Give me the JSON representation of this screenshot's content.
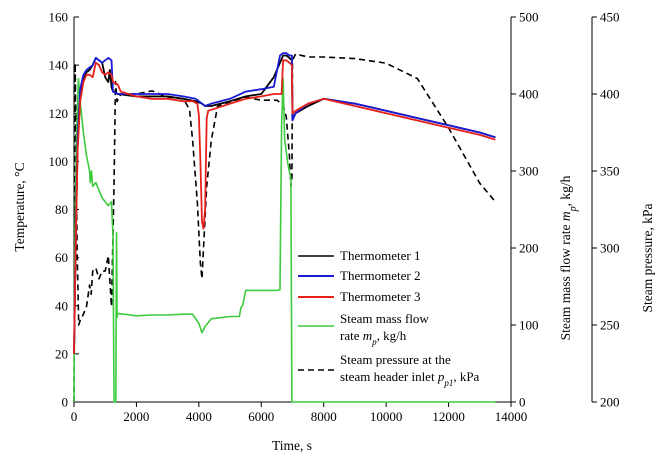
{
  "chart_data": {
    "type": "line",
    "x_axis": {
      "label_main": "Time, s",
      "range": [
        0,
        14000
      ],
      "ticks": [
        "0",
        "2000",
        "4000",
        "6000",
        "8000",
        "10000",
        "12000",
        "14000"
      ]
    },
    "y_left": {
      "label_main": "Temperature, °C",
      "range": [
        0,
        160
      ],
      "ticks": [
        "0",
        "20",
        "40",
        "60",
        "80",
        "100",
        "120",
        "140",
        "160"
      ]
    },
    "y_right1": {
      "label_main": "Steam mass flow rate ",
      "label_sym": "m",
      "label_sub": "p",
      "label_tail": ", kg/h",
      "range": [
        0,
        500
      ],
      "ticks": [
        "0",
        "100",
        "200",
        "300",
        "400",
        "500"
      ]
    },
    "y_right2": {
      "label_main": "Steam pressure, kPa",
      "range": [
        200,
        450
      ],
      "ticks": [
        "200",
        "250",
        "300",
        "350",
        "400",
        "450"
      ]
    },
    "legend": {
      "placement": "center-right inside plot",
      "items": [
        {
          "lines": [
            "Thermometer 1"
          ]
        },
        {
          "lines": [
            "Thermometer 2"
          ]
        },
        {
          "lines": [
            "Thermometer 3"
          ]
        },
        {
          "lines": [
            "Steam mass flow",
            "rate m_p, kg/h"
          ]
        },
        {
          "lines": [
            "Steam pressure at the",
            "steam header inlet p_p1, kPa"
          ]
        }
      ]
    },
    "series": [
      {
        "name": "Thermometer 1",
        "axis": "left",
        "color": "#000000",
        "dash": "none",
        "points": [
          [
            0,
            20
          ],
          [
            60,
            70
          ],
          [
            120,
            108
          ],
          [
            200,
            128
          ],
          [
            300,
            134
          ],
          [
            400,
            137
          ],
          [
            500,
            138
          ],
          [
            600,
            140
          ],
          [
            700,
            143
          ],
          [
            800,
            142
          ],
          [
            900,
            141
          ],
          [
            1000,
            135
          ],
          [
            1100,
            133
          ],
          [
            1150,
            138
          ],
          [
            1200,
            131
          ],
          [
            1250,
            129
          ],
          [
            1400,
            128
          ],
          [
            2000,
            127
          ],
          [
            2500,
            127
          ],
          [
            3000,
            127
          ],
          [
            3500,
            126
          ],
          [
            3900,
            125
          ],
          [
            4100,
            124
          ],
          [
            4200,
            123
          ],
          [
            4400,
            123
          ],
          [
            5000,
            125
          ],
          [
            5500,
            127
          ],
          [
            6000,
            128
          ],
          [
            6400,
            135
          ],
          [
            6700,
            144
          ],
          [
            6800,
            144
          ],
          [
            6900,
            143
          ],
          [
            6980,
            142
          ],
          [
            7000,
            118
          ],
          [
            7100,
            120
          ],
          [
            7500,
            123
          ],
          [
            8000,
            126
          ],
          [
            9000,
            124
          ],
          [
            10000,
            121
          ],
          [
            11000,
            118
          ],
          [
            12000,
            115
          ],
          [
            13000,
            112
          ],
          [
            13500,
            110
          ]
        ]
      },
      {
        "name": "Thermometer 2",
        "axis": "left",
        "color": "#1a1ad6",
        "dash": "none",
        "points": [
          [
            0,
            20
          ],
          [
            60,
            72
          ],
          [
            120,
            110
          ],
          [
            200,
            130
          ],
          [
            300,
            136
          ],
          [
            400,
            138
          ],
          [
            500,
            139
          ],
          [
            600,
            140
          ],
          [
            700,
            143
          ],
          [
            800,
            142
          ],
          [
            900,
            141
          ],
          [
            1000,
            142
          ],
          [
            1100,
            143
          ],
          [
            1200,
            142
          ],
          [
            1250,
            129
          ],
          [
            1400,
            128
          ],
          [
            2000,
            128
          ],
          [
            2500,
            128
          ],
          [
            3000,
            128
          ],
          [
            3500,
            127
          ],
          [
            3900,
            126
          ],
          [
            4100,
            124
          ],
          [
            4200,
            123
          ],
          [
            4400,
            124
          ],
          [
            5000,
            126
          ],
          [
            5500,
            129
          ],
          [
            6000,
            130
          ],
          [
            6400,
            131
          ],
          [
            6600,
            144
          ],
          [
            6700,
            145
          ],
          [
            6800,
            145
          ],
          [
            6900,
            144
          ],
          [
            6980,
            144
          ],
          [
            7000,
            117
          ],
          [
            7100,
            120
          ],
          [
            7500,
            124
          ],
          [
            8000,
            126
          ],
          [
            9000,
            124
          ],
          [
            10000,
            121
          ],
          [
            11000,
            118
          ],
          [
            12000,
            115
          ],
          [
            13000,
            112
          ],
          [
            13500,
            110
          ]
        ]
      },
      {
        "name": "Thermometer 3",
        "axis": "left",
        "color": "#e8201a",
        "dash": "none",
        "points": [
          [
            0,
            20
          ],
          [
            60,
            70
          ],
          [
            120,
            105
          ],
          [
            200,
            125
          ],
          [
            300,
            133
          ],
          [
            400,
            136
          ],
          [
            500,
            136
          ],
          [
            600,
            135
          ],
          [
            700,
            141
          ],
          [
            800,
            140
          ],
          [
            900,
            137
          ],
          [
            1000,
            136
          ],
          [
            1100,
            137
          ],
          [
            1200,
            136
          ],
          [
            1250,
            133
          ],
          [
            1400,
            132
          ],
          [
            1500,
            129
          ],
          [
            2000,
            127
          ],
          [
            2500,
            126
          ],
          [
            3000,
            126
          ],
          [
            3500,
            125
          ],
          [
            3800,
            125
          ],
          [
            3950,
            124
          ],
          [
            4000,
            119
          ],
          [
            4050,
            100
          ],
          [
            4100,
            75
          ],
          [
            4150,
            72
          ],
          [
            4200,
            80
          ],
          [
            4250,
            118
          ],
          [
            4300,
            121
          ],
          [
            5000,
            124
          ],
          [
            5500,
            126
          ],
          [
            6000,
            127
          ],
          [
            6400,
            128
          ],
          [
            6650,
            128
          ],
          [
            6700,
            142
          ],
          [
            6800,
            142
          ],
          [
            6900,
            141
          ],
          [
            6980,
            140
          ],
          [
            7000,
            120
          ],
          [
            7100,
            121
          ],
          [
            7500,
            124
          ],
          [
            8000,
            126
          ],
          [
            9000,
            123
          ],
          [
            10000,
            120
          ],
          [
            11000,
            117
          ],
          [
            12000,
            114
          ],
          [
            13000,
            111
          ],
          [
            13500,
            109
          ]
        ]
      },
      {
        "name": "Steam mass flow rate",
        "axis": "right1",
        "color": "#3ecb3e",
        "dash": "none",
        "points": [
          [
            0,
            0
          ],
          [
            30,
            210
          ],
          [
            80,
            340
          ],
          [
            140,
            420
          ],
          [
            200,
            390
          ],
          [
            300,
            350
          ],
          [
            400,
            320
          ],
          [
            500,
            300
          ],
          [
            520,
            285
          ],
          [
            560,
            300
          ],
          [
            600,
            280
          ],
          [
            700,
            285
          ],
          [
            800,
            275
          ],
          [
            900,
            265
          ],
          [
            1000,
            260
          ],
          [
            1100,
            255
          ],
          [
            1200,
            260
          ],
          [
            1250,
            215
          ],
          [
            1280,
            0
          ],
          [
            1300,
            0
          ],
          [
            1340,
            0
          ],
          [
            1360,
            220
          ],
          [
            1380,
            110
          ],
          [
            1400,
            115
          ],
          [
            2000,
            112
          ],
          [
            2500,
            113
          ],
          [
            3000,
            113
          ],
          [
            3500,
            114
          ],
          [
            3800,
            114
          ],
          [
            4000,
            102
          ],
          [
            4100,
            90
          ],
          [
            4200,
            98
          ],
          [
            4400,
            108
          ],
          [
            5000,
            111
          ],
          [
            5300,
            111
          ],
          [
            5350,
            123
          ],
          [
            5400,
            125
          ],
          [
            5500,
            145
          ],
          [
            6000,
            145
          ],
          [
            6500,
            145
          ],
          [
            6600,
            146
          ],
          [
            6650,
            360
          ],
          [
            6700,
            420
          ],
          [
            6750,
            340
          ],
          [
            6850,
            310
          ],
          [
            6950,
            290
          ],
          [
            6980,
            0
          ],
          [
            7000,
            0
          ],
          [
            10000,
            0
          ],
          [
            13500,
            0
          ]
        ]
      },
      {
        "name": "Steam pressure at the steam header inlet",
        "axis": "right2",
        "color": "#000000",
        "dash": "6,4",
        "points": [
          [
            0,
            200
          ],
          [
            40,
            420
          ],
          [
            100,
            300
          ],
          [
            150,
            250
          ],
          [
            200,
            253
          ],
          [
            300,
            257
          ],
          [
            400,
            262
          ],
          [
            500,
            276
          ],
          [
            550,
            270
          ],
          [
            600,
            285
          ],
          [
            700,
            287
          ],
          [
            800,
            280
          ],
          [
            900,
            285
          ],
          [
            1000,
            285
          ],
          [
            1100,
            295
          ],
          [
            1200,
            262
          ],
          [
            1280,
            340
          ],
          [
            1330,
            408
          ],
          [
            1380,
            395
          ],
          [
            1500,
            400
          ],
          [
            2000,
            400
          ],
          [
            2500,
            402
          ],
          [
            3000,
            398
          ],
          [
            3500,
            397
          ],
          [
            3700,
            390
          ],
          [
            3800,
            370
          ],
          [
            3950,
            330
          ],
          [
            4050,
            290
          ],
          [
            4100,
            280
          ],
          [
            4150,
            300
          ],
          [
            4250,
            340
          ],
          [
            4400,
            370
          ],
          [
            4600,
            392
          ],
          [
            5000,
            395
          ],
          [
            5500,
            398
          ],
          [
            6000,
            396
          ],
          [
            6500,
            396
          ],
          [
            6700,
            393
          ],
          [
            6800,
            385
          ],
          [
            6900,
            360
          ],
          [
            6950,
            340
          ],
          [
            6980,
            345
          ],
          [
            7000,
            422
          ],
          [
            7100,
            426
          ],
          [
            7500,
            424
          ],
          [
            8000,
            424
          ],
          [
            9000,
            423
          ],
          [
            10000,
            420
          ],
          [
            11000,
            410
          ],
          [
            12000,
            378
          ],
          [
            13000,
            342
          ],
          [
            13500,
            330
          ]
        ]
      }
    ]
  }
}
